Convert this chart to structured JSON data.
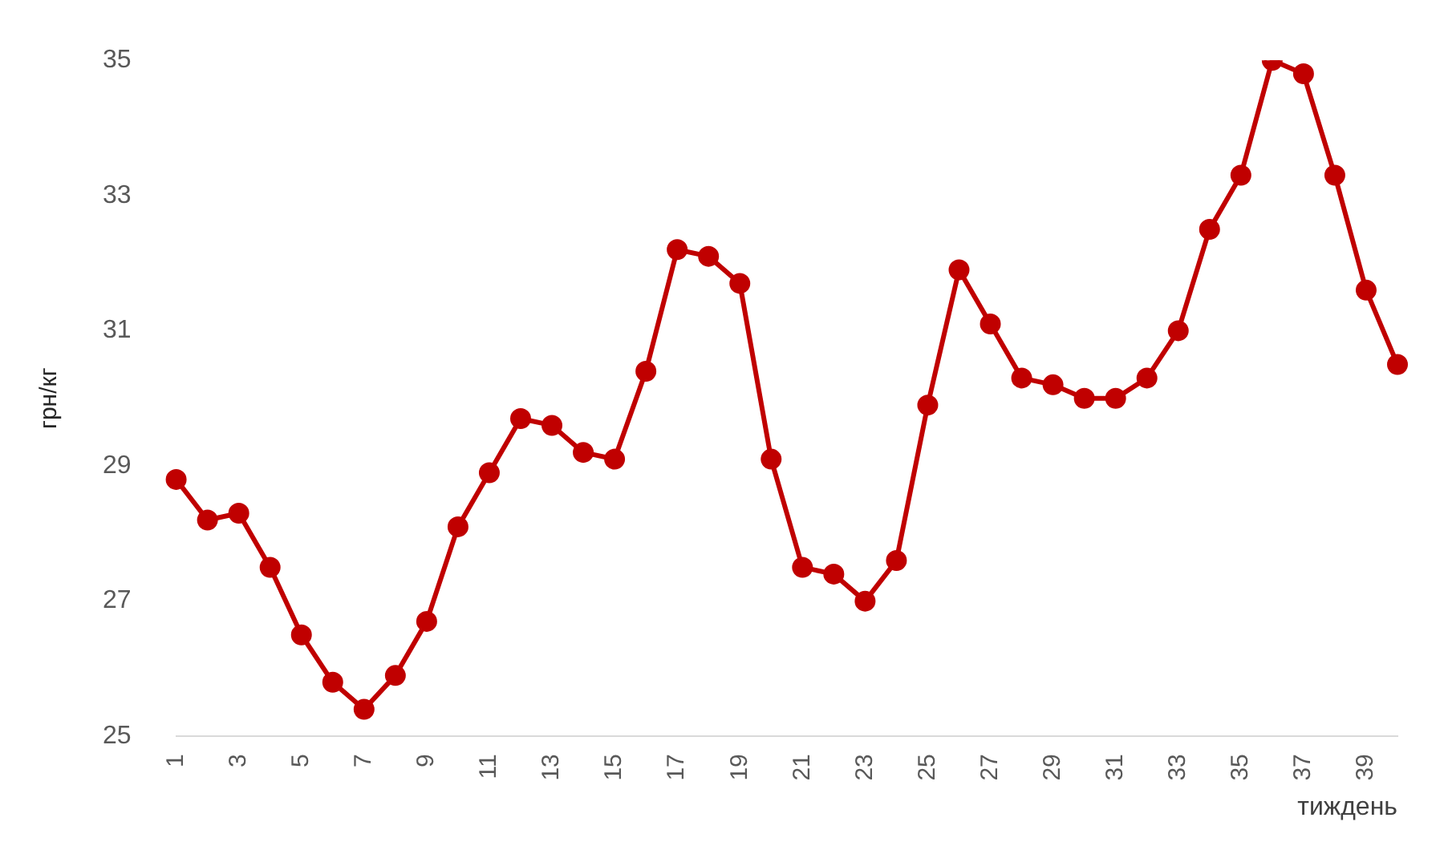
{
  "chart_data": {
    "type": "line",
    "xlabel": "тиждень",
    "ylabel": "грн/кг",
    "categories": [
      "1",
      null,
      "3",
      null,
      "5",
      null,
      "7",
      null,
      "9",
      null,
      "11",
      null,
      "13",
      null,
      "15",
      null,
      "17",
      null,
      "19",
      null,
      "21",
      null,
      "23",
      null,
      "25",
      null,
      "27",
      null,
      "29",
      null,
      "31",
      null,
      "33",
      null,
      "35",
      null,
      "37",
      null,
      "39",
      null
    ],
    "series": [
      {
        "color": "#c00000",
        "values": [
          28.8,
          28.2,
          28.3,
          27.5,
          26.5,
          25.8,
          25.4,
          25.9,
          26.7,
          28.1,
          28.9,
          29.7,
          29.6,
          29.2,
          29.1,
          30.4,
          32.2,
          32.1,
          31.7,
          29.1,
          27.5,
          27.4,
          27.0,
          27.6,
          29.9,
          31.9,
          31.1,
          30.3,
          30.2,
          30.0,
          30.0,
          30.3,
          31.0,
          32.5,
          33.3,
          35.0,
          34.8,
          33.3,
          31.6,
          30.5
        ]
      }
    ],
    "ylim": [
      25,
      35
    ],
    "yticks": [
      25,
      27,
      29,
      31,
      33,
      35
    ],
    "grid": false,
    "legend": false,
    "marker": "circle",
    "line_style": "solid"
  }
}
